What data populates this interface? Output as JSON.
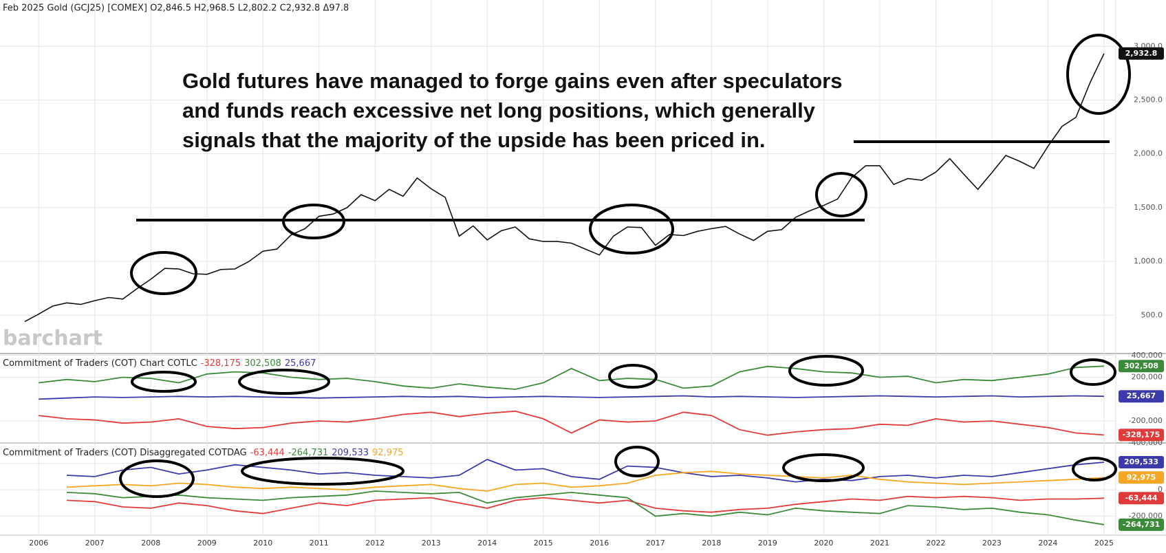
{
  "chart_data": [
    {
      "type": "line",
      "title": "Feb 2025 Gold (GCJ25) [COMEX] O2,846.5 H2,968.5 L2,802.2 C2,932.8 Δ97.8",
      "annotation": [
        "Gold futures have managed to forge gains even after speculators",
        "and funds reach excessive net long positions, which generally",
        "signals that the majority of the upside has been priced in."
      ],
      "watermark": "barchart",
      "xlim": [
        2005.31,
        2025.21
      ],
      "ylim": [
        150,
        3430
      ],
      "grid": true,
      "yticks": [
        {
          "value": 500,
          "label": "500.0"
        },
        {
          "value": 1000,
          "label": "1,000.0"
        },
        {
          "value": 1500,
          "label": "1,500.0"
        },
        {
          "value": 2000,
          "label": "2,000.0"
        },
        {
          "value": 2500,
          "label": "2,500.0"
        },
        {
          "value": 3000,
          "label": "3,000.0"
        }
      ],
      "x": [
        2005.75,
        2006,
        2006.25,
        2006.5,
        2006.75,
        2007,
        2007.25,
        2007.5,
        2007.75,
        2008,
        2008.25,
        2008.5,
        2008.75,
        2009,
        2009.25,
        2009.5,
        2009.75,
        2010,
        2010.25,
        2010.5,
        2010.75,
        2011,
        2011.25,
        2011.5,
        2011.75,
        2012,
        2012.25,
        2012.5,
        2012.75,
        2013,
        2013.25,
        2013.5,
        2013.75,
        2014,
        2014.25,
        2014.5,
        2014.75,
        2015,
        2015.25,
        2015.5,
        2015.75,
        2016,
        2016.25,
        2016.5,
        2016.75,
        2017,
        2017.25,
        2017.5,
        2017.75,
        2018,
        2018.25,
        2018.5,
        2018.75,
        2019,
        2019.25,
        2019.5,
        2019.75,
        2020,
        2020.25,
        2020.5,
        2020.75,
        2021,
        2021.25,
        2021.5,
        2021.75,
        2022,
        2022.25,
        2022.5,
        2022.75,
        2023,
        2023.25,
        2023.5,
        2023.75,
        2024,
        2024.25,
        2024.5,
        2024.75,
        2025
      ],
      "series": [
        {
          "color": "#111111",
          "last_label": "2,932.8",
          "values": [
            440,
            510,
            585,
            615,
            600,
            635,
            665,
            650,
            745,
            835,
            935,
            930,
            885,
            880,
            925,
            930,
            1000,
            1095,
            1115,
            1245,
            1305,
            1420,
            1440,
            1500,
            1620,
            1565,
            1670,
            1605,
            1775,
            1675,
            1595,
            1235,
            1330,
            1200,
            1285,
            1320,
            1210,
            1185,
            1185,
            1170,
            1115,
            1060,
            1235,
            1320,
            1315,
            1150,
            1250,
            1240,
            1280,
            1305,
            1325,
            1255,
            1195,
            1280,
            1295,
            1410,
            1470,
            1520,
            1580,
            1780,
            1890,
            1890,
            1715,
            1770,
            1755,
            1830,
            1955,
            1810,
            1670,
            1825,
            1985,
            1930,
            1865,
            2070,
            2255,
            2340,
            2660,
            2932.8
          ]
        }
      ]
    },
    {
      "type": "line",
      "title": "Commitment of Traders (COT) Chart  COTLC",
      "xlim": [
        2005.31,
        2025.21
      ],
      "ylim": [
        -395000,
        405000
      ],
      "yticks": [
        {
          "value": 400000,
          "label": "400,000"
        },
        {
          "value": 200000,
          "label": "200,000"
        },
        {
          "value": -200000,
          "label": "-200,000"
        },
        {
          "value": -400000,
          "label": "-400,000"
        }
      ],
      "x": [
        2006,
        2006.5,
        2007,
        2007.5,
        2008,
        2008.5,
        2009,
        2009.5,
        2010,
        2010.5,
        2011,
        2011.5,
        2012,
        2012.5,
        2013,
        2013.5,
        2014,
        2014.5,
        2015,
        2015.5,
        2016,
        2016.5,
        2017,
        2017.5,
        2018,
        2018.5,
        2019,
        2019.5,
        2020,
        2020.5,
        2021,
        2021.5,
        2022,
        2022.5,
        2023,
        2023.5,
        2024,
        2024.5,
        2025
      ],
      "series": [
        {
          "color": "#e03a3a",
          "last_label": "-328,175",
          "values": [
            -150000,
            -180000,
            -190000,
            -220000,
            -210000,
            -180000,
            -250000,
            -270000,
            -260000,
            -220000,
            -200000,
            -210000,
            -180000,
            -140000,
            -120000,
            -160000,
            -130000,
            -110000,
            -180000,
            -310000,
            -190000,
            -210000,
            -200000,
            -120000,
            -150000,
            -280000,
            -330000,
            -300000,
            -280000,
            -270000,
            -230000,
            -240000,
            -180000,
            -210000,
            -200000,
            -230000,
            -260000,
            -310000,
            -328175
          ]
        },
        {
          "color": "#3a8a3a",
          "last_label": "302,508",
          "values": [
            150000,
            180000,
            160000,
            200000,
            190000,
            150000,
            230000,
            250000,
            240000,
            200000,
            180000,
            190000,
            160000,
            120000,
            100000,
            140000,
            110000,
            90000,
            150000,
            280000,
            170000,
            190000,
            180000,
            100000,
            120000,
            250000,
            300000,
            280000,
            250000,
            240000,
            200000,
            210000,
            150000,
            180000,
            170000,
            200000,
            230000,
            290000,
            302508
          ]
        },
        {
          "color": "#3a3aaa",
          "last_label": "25,667",
          "values": [
            0,
            10000,
            20000,
            15000,
            20000,
            25000,
            20000,
            25000,
            20000,
            15000,
            10000,
            15000,
            20000,
            25000,
            20000,
            25000,
            15000,
            20000,
            25000,
            20000,
            15000,
            20000,
            25000,
            30000,
            20000,
            25000,
            20000,
            15000,
            20000,
            25000,
            30000,
            25000,
            20000,
            25000,
            30000,
            20000,
            25000,
            30000,
            25667
          ]
        }
      ]
    },
    {
      "type": "line",
      "title": "Commitment of Traders (COT) Disaggregated  COTDAG",
      "xlim": [
        2005.31,
        2025.21
      ],
      "ylim": [
        -344000,
        345000
      ],
      "yticks": [
        {
          "value": 200000,
          "label": "200,000"
        },
        0,
        {
          "value": -200000,
          "label": "-200,000"
        }
      ],
      "xticks": [
        2006,
        2007,
        2008,
        2009,
        2010,
        2011,
        2012,
        2013,
        2014,
        2015,
        2016,
        2017,
        2018,
        2019,
        2020,
        2021,
        2022,
        2023,
        2024,
        2025
      ],
      "x": [
        2006.5,
        2007,
        2007.5,
        2008,
        2008.5,
        2009,
        2009.5,
        2010,
        2010.5,
        2011,
        2011.5,
        2012,
        2012.5,
        2013,
        2013.5,
        2014,
        2014.5,
        2015,
        2015.5,
        2016,
        2016.5,
        2017,
        2017.5,
        2018,
        2018.5,
        2019,
        2019.5,
        2020,
        2020.5,
        2021,
        2021.5,
        2022,
        2022.5,
        2023,
        2023.5,
        2024,
        2024.5,
        2025
      ],
      "series": [
        {
          "color": "#e03a3a",
          "last_label": "-63,444",
          "values": [
            -80000,
            -90000,
            -130000,
            -140000,
            -100000,
            -120000,
            -160000,
            -180000,
            -140000,
            -100000,
            -120000,
            -80000,
            -70000,
            -60000,
            -100000,
            -140000,
            -80000,
            -60000,
            -80000,
            -100000,
            -80000,
            -140000,
            -160000,
            -170000,
            -150000,
            -140000,
            -110000,
            -90000,
            -70000,
            -80000,
            -50000,
            -60000,
            -50000,
            -60000,
            -80000,
            -70000,
            -70000,
            -63444
          ]
        },
        {
          "color": "#3a8a3a",
          "last_label": "-264,731",
          "values": [
            -20000,
            -30000,
            -60000,
            -50000,
            -40000,
            -60000,
            -70000,
            -80000,
            -60000,
            -50000,
            -40000,
            -10000,
            -20000,
            -30000,
            -20000,
            -100000,
            -60000,
            -40000,
            -20000,
            -40000,
            -60000,
            -200000,
            -180000,
            -200000,
            -170000,
            -190000,
            -140000,
            -160000,
            -170000,
            -180000,
            -120000,
            -130000,
            -150000,
            -140000,
            -170000,
            -190000,
            -230000,
            -264731
          ]
        },
        {
          "color": "#3a3aaa",
          "last_label": "209,533",
          "values": [
            110000,
            100000,
            150000,
            170000,
            120000,
            150000,
            190000,
            170000,
            150000,
            120000,
            130000,
            110000,
            100000,
            90000,
            110000,
            230000,
            150000,
            160000,
            100000,
            80000,
            180000,
            170000,
            130000,
            100000,
            110000,
            90000,
            60000,
            80000,
            70000,
            100000,
            110000,
            90000,
            110000,
            100000,
            130000,
            160000,
            190000,
            209533
          ]
        },
        {
          "color": "#f5a623",
          "last_label": "92,975",
          "values": [
            20000,
            30000,
            40000,
            30000,
            50000,
            40000,
            20000,
            10000,
            20000,
            10000,
            0,
            20000,
            30000,
            40000,
            10000,
            -10000,
            40000,
            50000,
            20000,
            30000,
            50000,
            110000,
            130000,
            140000,
            120000,
            110000,
            100000,
            90000,
            110000,
            80000,
            60000,
            50000,
            40000,
            50000,
            60000,
            70000,
            80000,
            92975
          ]
        }
      ]
    }
  ]
}
